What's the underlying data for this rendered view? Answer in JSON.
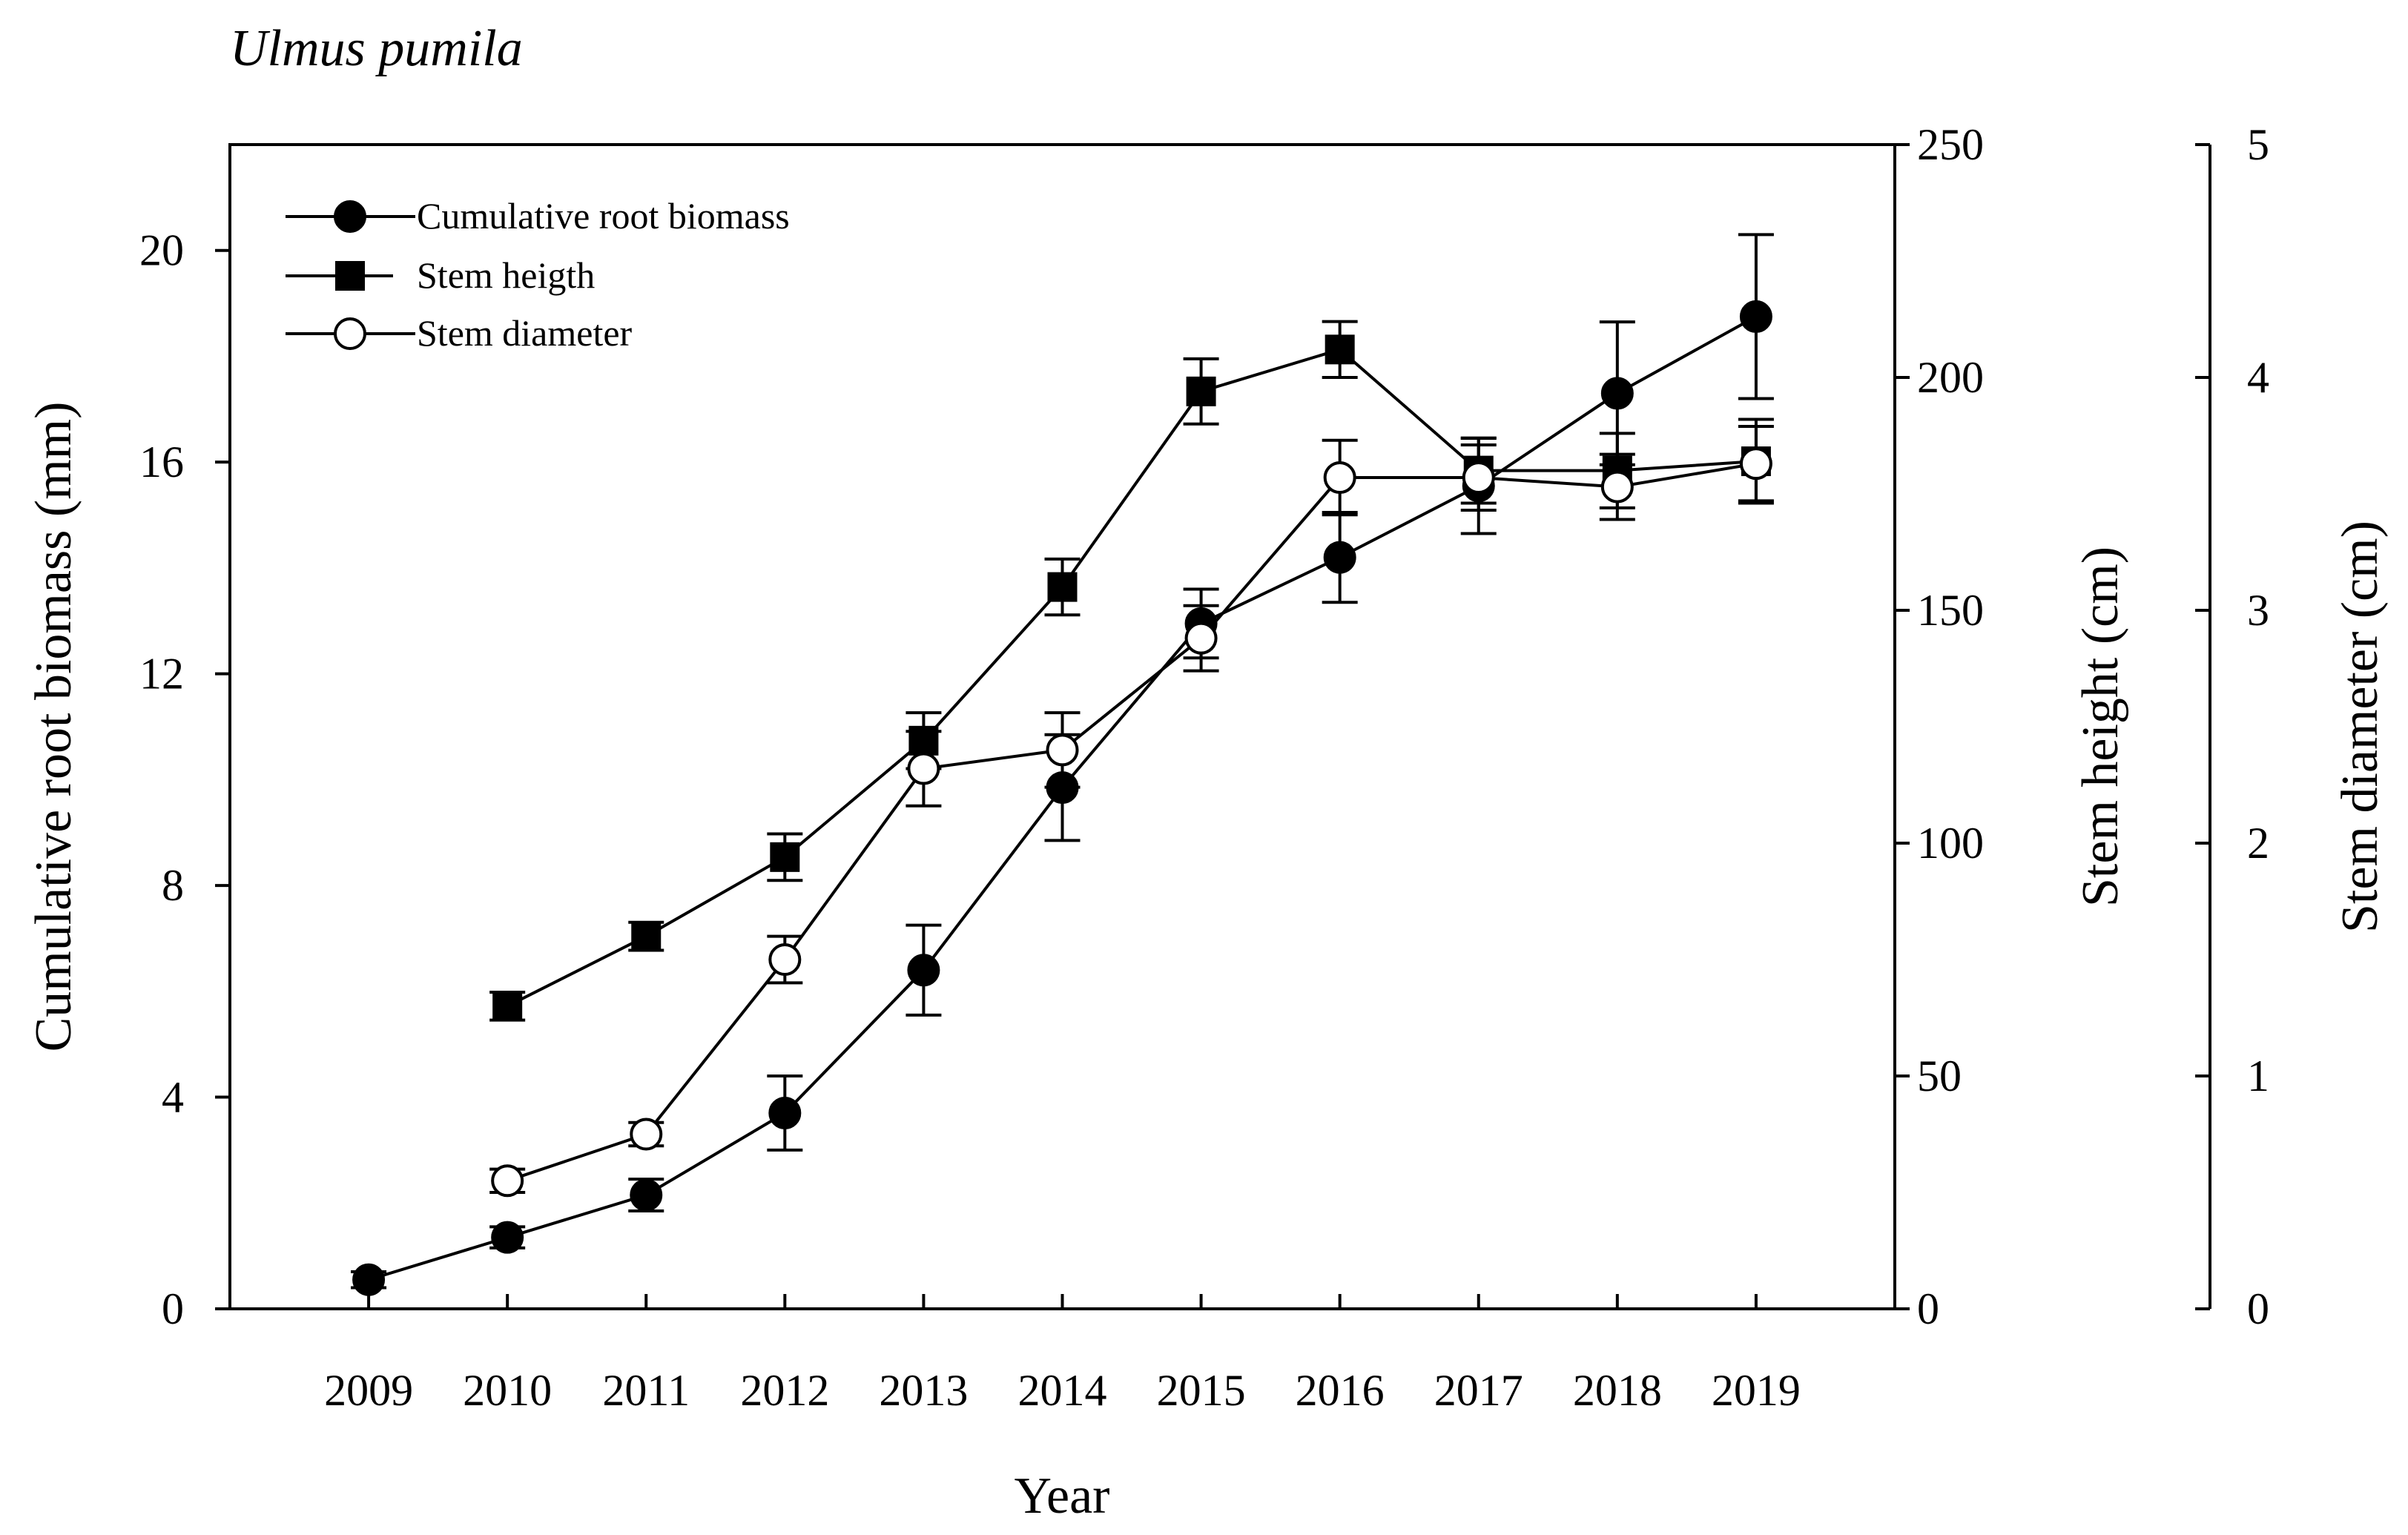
{
  "chart_data": {
    "type": "line",
    "title": "Ulmus pumila",
    "xlabel": "Year",
    "x": [
      2009,
      2010,
      2011,
      2012,
      2013,
      2014,
      2015,
      2016,
      2017,
      2018,
      2019
    ],
    "xlim": [
      2008,
      2020
    ],
    "axes": {
      "left": {
        "label": "Cumulative root biomass (mm)",
        "ylim": [
          0,
          22
        ],
        "ticks": [
          0,
          4,
          8,
          12,
          16,
          20
        ]
      },
      "right": {
        "label": "Stem height (cm)",
        "ylim": [
          0,
          250
        ],
        "ticks": [
          0,
          50,
          100,
          150,
          200,
          250
        ]
      },
      "right2": {
        "label": "Stem diameter (cm)",
        "ylim": [
          0,
          5
        ],
        "ticks": [
          0,
          1,
          2,
          3,
          4,
          5
        ]
      }
    },
    "series": [
      {
        "name": "Cumulative root biomass",
        "axis": "left",
        "marker": "filled-circle",
        "x": [
          2009,
          2010,
          2011,
          2012,
          2013,
          2014,
          2015,
          2016,
          2017,
          2018,
          2019
        ],
        "values": [
          0.55,
          1.35,
          2.15,
          3.7,
          6.4,
          9.85,
          12.95,
          14.2,
          15.55,
          17.3,
          18.75
        ],
        "errors": [
          0.15,
          0.2,
          0.3,
          0.7,
          0.85,
          1.0,
          0.65,
          0.85,
          0.9,
          1.35,
          1.55
        ]
      },
      {
        "name": "Stem heigth",
        "axis": "right",
        "marker": "filled-square",
        "x": [
          2010,
          2011,
          2012,
          2013,
          2014,
          2015,
          2016,
          2017,
          2018,
          2019
        ],
        "values": [
          65,
          80,
          97,
          122,
          155,
          197,
          206,
          180,
          180,
          182
        ],
        "errors": [
          3,
          3,
          5,
          6,
          6,
          7,
          6,
          7,
          8,
          9
        ]
      },
      {
        "name": "Stem diameter",
        "axis": "right2",
        "marker": "open-circle",
        "x": [
          2010,
          2011,
          2012,
          2013,
          2014,
          2015,
          2016,
          2017,
          2018,
          2019
        ],
        "values": [
          0.55,
          0.75,
          1.5,
          2.32,
          2.4,
          2.88,
          3.57,
          3.57,
          3.53,
          3.63
        ],
        "errors": [
          0.05,
          0.05,
          0.1,
          0.16,
          0.16,
          0.14,
          0.16,
          0.14,
          0.14,
          0.16
        ]
      }
    ],
    "legend": {
      "position": "top-left",
      "entries": [
        "Cumulative root biomass",
        "Stem heigth",
        "Stem diameter"
      ]
    }
  }
}
